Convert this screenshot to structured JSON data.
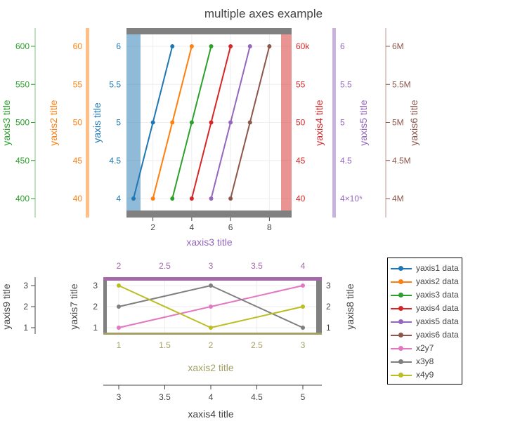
{
  "chart_data": {
    "type": "line",
    "title": "multiple axes example",
    "colors": {
      "yaxis1": "#1f77b4",
      "yaxis2": "#ff7f0e",
      "yaxis3": "#2ca02c",
      "yaxis4": "#d62728",
      "yaxis5": "#9467bd",
      "yaxis6": "#8c564b",
      "x2y7": "#e377c2",
      "x3y8": "#7f7f7f",
      "x4y9": "#bcbd22",
      "axis_band_gray": "#808080",
      "xaxis2_line": "#a4a064",
      "xaxis3_line": "#a569a9"
    },
    "axes": {
      "xaxis3": {
        "title": "xaxis3 title",
        "ticks": [
          "2",
          "4",
          "6",
          "8"
        ],
        "range": [
          1,
          9
        ]
      },
      "yaxis": {
        "title": "yaxis title",
        "ticks": [
          "4",
          "4.5",
          "5",
          "5.5",
          "6"
        ],
        "range": [
          4,
          6
        ]
      },
      "yaxis2": {
        "title": "yaxis2 title",
        "ticks": [
          "40",
          "45",
          "50",
          "55",
          "60"
        ],
        "range": [
          40,
          60
        ]
      },
      "yaxis3": {
        "title": "yaxis3 title",
        "ticks": [
          "400",
          "450",
          "500",
          "550",
          "600"
        ],
        "range": [
          400,
          600
        ]
      },
      "yaxis4": {
        "title": "yaxis4 title",
        "ticks": [
          "40",
          "45",
          "50",
          "55",
          "60k"
        ],
        "range": [
          40000,
          60000
        ]
      },
      "yaxis5": {
        "title": "yaxis5 title",
        "ticks": [
          "4×10⁵",
          "4.5",
          "5",
          "5.5",
          "6"
        ],
        "range": [
          400000,
          600000
        ]
      },
      "yaxis6": {
        "title": "yaxis6 title",
        "ticks": [
          "4M",
          "4.5M",
          "5M",
          "5.5M",
          "6M"
        ],
        "range": [
          4000000,
          6000000
        ]
      },
      "xaxis2": {
        "title": "xaxis2 title",
        "ticks": [
          "1",
          "1.5",
          "2",
          "2.5",
          "3"
        ],
        "range": [
          1,
          3
        ]
      },
      "xaxis_top": {
        "title": "",
        "ticks": [
          "2",
          "2.5",
          "3",
          "3.5",
          "4"
        ],
        "range": [
          2,
          4
        ]
      },
      "xaxis4": {
        "title": "xaxis4 title",
        "ticks": [
          "3",
          "3.5",
          "4",
          "4.5",
          "5"
        ],
        "range": [
          3,
          5
        ]
      },
      "yaxis7": {
        "title": "yaxis7 title",
        "ticks": [
          "1",
          "2",
          "3"
        ],
        "range": [
          1,
          3
        ]
      },
      "yaxis8": {
        "title": "yaxis8 title",
        "ticks": [
          "1",
          "2",
          "3"
        ],
        "range": [
          1,
          3
        ]
      },
      "yaxis9": {
        "title": "yaxis9 title",
        "ticks": [
          "1",
          "2",
          "3"
        ],
        "range": [
          1,
          3
        ]
      }
    },
    "series": [
      {
        "name": "yaxis1 data",
        "key": "yaxis1",
        "x": [
          1,
          2,
          3
        ],
        "y": [
          4,
          5,
          6
        ]
      },
      {
        "name": "yaxis2 data",
        "key": "yaxis2",
        "x": [
          2,
          3,
          4
        ],
        "y": [
          40,
          50,
          60
        ]
      },
      {
        "name": "yaxis3 data",
        "key": "yaxis3",
        "x": [
          3,
          4,
          5
        ],
        "y": [
          400,
          500,
          600
        ]
      },
      {
        "name": "yaxis4 data",
        "key": "yaxis4",
        "x": [
          4,
          5,
          6
        ],
        "y": [
          40000,
          50000,
          60000
        ]
      },
      {
        "name": "yaxis5 data",
        "key": "yaxis5",
        "x": [
          5,
          6,
          7
        ],
        "y": [
          400000,
          500000,
          600000
        ]
      },
      {
        "name": "yaxis6 data",
        "key": "yaxis6",
        "x": [
          6,
          7,
          8
        ],
        "y": [
          4000000,
          5000000,
          6000000
        ]
      },
      {
        "name": "x2y7",
        "key": "x2y7",
        "x": [
          1,
          2,
          3
        ],
        "y": [
          1,
          2,
          3
        ]
      },
      {
        "name": "x3y8",
        "key": "x3y8",
        "x": [
          1,
          2,
          3
        ],
        "y": [
          2,
          3,
          1
        ]
      },
      {
        "name": "x4y9",
        "key": "x4y9",
        "x": [
          1,
          2,
          3
        ],
        "y": [
          3,
          1,
          2
        ]
      }
    ],
    "legend_position": "bottom-right"
  }
}
